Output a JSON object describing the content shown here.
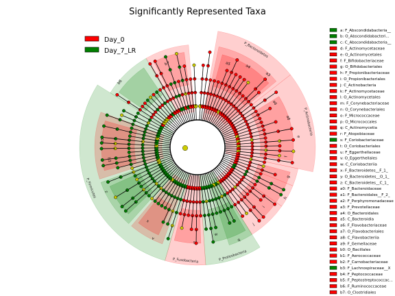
{
  "chart_data": {
    "type": "cladogram",
    "title": "Significantly Represented Taxa",
    "legend": [
      {
        "name": "Day_0",
        "color": "#ff0000"
      },
      {
        "name": "Day_7_LR",
        "color": "#008000"
      }
    ],
    "colors": {
      "day0": "#ff0000",
      "day7": "#008000",
      "node_ns": "#cccc00",
      "edge": "#000000"
    },
    "taxa": [
      {
        "key": "a",
        "label": "a: F_Abscondidabacteria__",
        "group": "Day_7_LR"
      },
      {
        "key": "b",
        "label": "b: O_Abscondidabacteri...",
        "group": "Day_7_LR"
      },
      {
        "key": "c",
        "label": "c: C_Abscondidabacteria__",
        "group": "Day_7_LR"
      },
      {
        "key": "d",
        "label": "d: F_Actinomycetaceae",
        "group": "Day_0"
      },
      {
        "key": "e",
        "label": "e: O_Actinomycetales",
        "group": "Day_0"
      },
      {
        "key": "f",
        "label": "f: F_Bifidobacteriaceae",
        "group": "Day_0"
      },
      {
        "key": "g",
        "label": "g: O_Bifidobacteriales",
        "group": "Day_0"
      },
      {
        "key": "h",
        "label": "h: F_Propionibacteriaceae",
        "group": "Day_0"
      },
      {
        "key": "i",
        "label": "i: O_Propionibacteriales",
        "group": "Day_0"
      },
      {
        "key": "j",
        "label": "j: C_Actinobacteria",
        "group": "Day_0"
      },
      {
        "key": "k",
        "label": "k: F_Actinomycetaceae",
        "group": "Day_0"
      },
      {
        "key": "l",
        "label": "l: O_Actinomycetales",
        "group": "Day_0"
      },
      {
        "key": "m",
        "label": "m: F_Corynebacteriaceae",
        "group": "Day_0"
      },
      {
        "key": "n",
        "label": "n: O_Corynebacteriales",
        "group": "Day_0"
      },
      {
        "key": "o",
        "label": "o: F_Micrococcaceae",
        "group": "Day_0"
      },
      {
        "key": "p",
        "label": "p: O_Micrococcales",
        "group": "Day_0"
      },
      {
        "key": "q",
        "label": "q: C_Actinomycetia",
        "group": "Day_0"
      },
      {
        "key": "r",
        "label": "r: F_Atopobiaceae",
        "group": "Day_0"
      },
      {
        "key": "s",
        "label": "s: F_Coriobacteriaceae",
        "group": "Day_7_LR"
      },
      {
        "key": "t",
        "label": "t: O_Coriobacteriales",
        "group": "Day_0"
      },
      {
        "key": "u",
        "label": "u: F_Eggerthellaceae",
        "group": "Day_0"
      },
      {
        "key": "v",
        "label": "v: O_Eggerthellales",
        "group": "Day_0"
      },
      {
        "key": "w",
        "label": "w: C_Coriobacteriia",
        "group": "Day_0"
      },
      {
        "key": "x",
        "label": "x: F_Bacteroidetes__F_1_",
        "group": "Day_0"
      },
      {
        "key": "y",
        "label": "y: O_Bacteroidetes__O_1_",
        "group": "Day_0"
      },
      {
        "key": "z",
        "label": "z: C_Bacteroidetes__C_1_",
        "group": "Day_0"
      },
      {
        "key": "a0",
        "label": "a0: F_Bacteroidaceae",
        "group": "Day_0"
      },
      {
        "key": "a1",
        "label": "a1: F_Bacteroidales__F_2_",
        "group": "Day_0"
      },
      {
        "key": "a2",
        "label": "a2: F_Porphyromonadaceae",
        "group": "Day_0"
      },
      {
        "key": "a3",
        "label": "a3: F_Prevotellaceae",
        "group": "Day_0"
      },
      {
        "key": "a4",
        "label": "a4: O_Bacteroidales",
        "group": "Day_0"
      },
      {
        "key": "a5",
        "label": "a5: C_Bacteroidia",
        "group": "Day_0"
      },
      {
        "key": "a6",
        "label": "a6: F_Flavobacteriaceae",
        "group": "Day_0"
      },
      {
        "key": "a7",
        "label": "a7: O_Flavobacteriales",
        "group": "Day_0"
      },
      {
        "key": "a8",
        "label": "a8: C_Flavobacteriia",
        "group": "Day_0"
      },
      {
        "key": "a9",
        "label": "a9: F_Gemellaceae",
        "group": "Day_0"
      },
      {
        "key": "b0",
        "label": "b0: O_Bacillales",
        "group": "Day_0"
      },
      {
        "key": "b1",
        "label": "b1: F_Aerococcaceae",
        "group": "Day_0"
      },
      {
        "key": "b2",
        "label": "b2: F_Carnobacteriaceae",
        "group": "Day_0"
      },
      {
        "key": "b3",
        "label": "b3: F_Lachnospiraceae__X",
        "group": "Day_7_LR"
      },
      {
        "key": "b4",
        "label": "b4: F_Peptococcaceae",
        "group": "Day_0"
      },
      {
        "key": "b5",
        "label": "b5: F_Peptostreptococcac...",
        "group": "Day_0"
      },
      {
        "key": "b6",
        "label": "b6: F_Ruminococcaceae",
        "group": "Day_0"
      },
      {
        "key": "b7",
        "label": "b7: O_Clostridiales",
        "group": "Day_0"
      }
    ],
    "sectors": [
      {
        "label": "P_Bacteroidetes",
        "group": "Day_0",
        "start": 10,
        "end": 52
      },
      {
        "label": "P_Actinobacteria",
        "group": "Day_0",
        "start": 52,
        "end": 102
      },
      {
        "label": "P_Proteobacteria",
        "group": "Day_7_LR",
        "start": 148,
        "end": 176
      },
      {
        "label": "P_Fusobacteria",
        "group": "Day_0",
        "start": 176,
        "end": 196
      },
      {
        "label": "P_Firmicutes",
        "group": "Day_7_LR",
        "start": 196,
        "end": 302
      }
    ],
    "clade_labels": [
      "a5",
      "a4",
      "a3",
      "a6",
      "a8",
      "e",
      "f",
      "g",
      "h",
      "i",
      "j",
      "q",
      "w",
      "s",
      "v",
      "x",
      "y",
      "z",
      "b3",
      "b5",
      "b6",
      "b7"
    ]
  }
}
